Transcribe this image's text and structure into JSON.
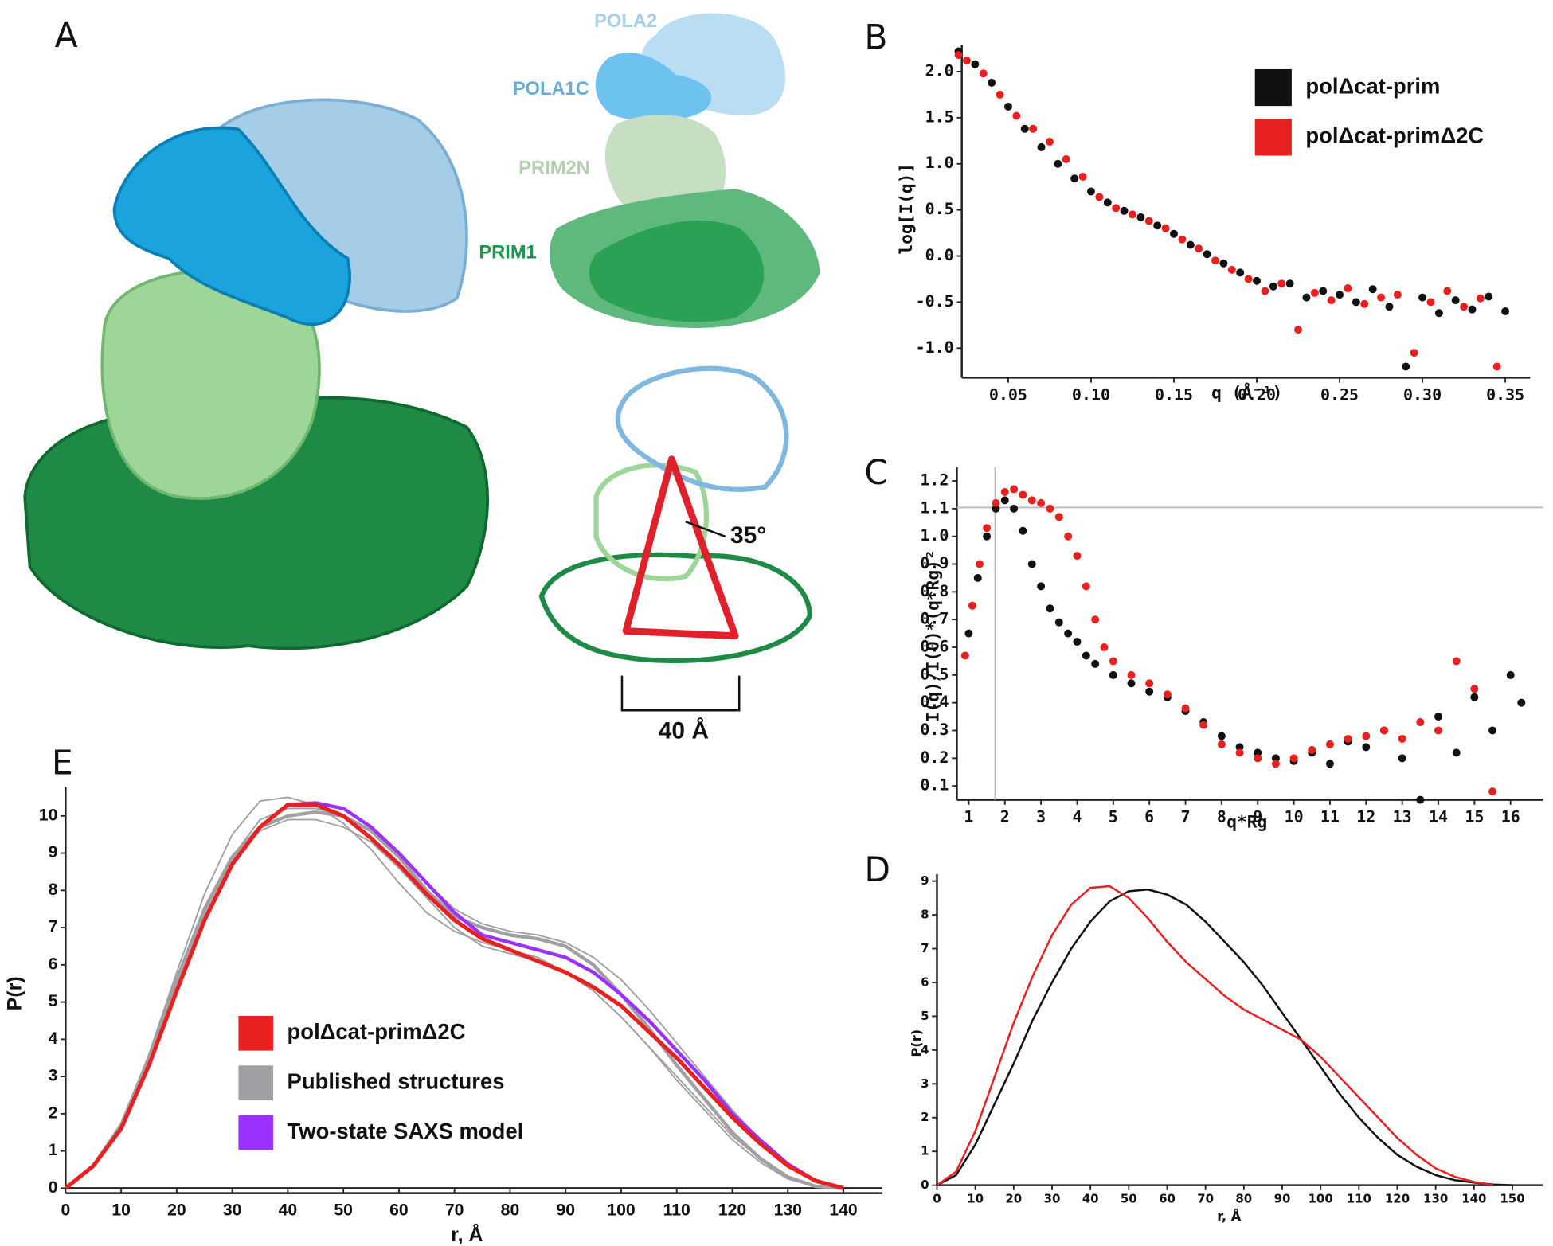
{
  "panel_a": {
    "label": "A",
    "subunits": [
      "POLA2",
      "POLA1C",
      "PRIM2N",
      "PRIM1"
    ],
    "angle": "35°",
    "distance": "40 Å"
  },
  "chart_data": [
    {
      "type": "scatter",
      "panel_label": "B",
      "x_label": "q (Å⁻¹)",
      "y_label": "log[I(q)]",
      "xlim": [
        0.022,
        0.365
      ],
      "ylim": [
        -1.32,
        2.29
      ],
      "xticks": [
        0.05,
        {
          "value": 0.1,
          "label": "0.10"
        },
        0.15,
        {
          "value": 0.2,
          "label": "0.20"
        },
        0.25,
        {
          "value": 0.3,
          "label": "0.30"
        },
        0.35
      ],
      "yticks": [
        {
          "value": 2,
          "label": "2.0"
        },
        1.5,
        {
          "value": 1,
          "label": "1.0"
        },
        0.5,
        {
          "value": 0,
          "label": "0.0"
        },
        -0.5,
        {
          "value": -1,
          "label": "-1.0"
        }
      ],
      "series": [
        {
          "name": "polΔcat-prim",
          "color": "#111111",
          "x": [
            0.02,
            0.03,
            0.04,
            0.05,
            0.06,
            0.07,
            0.08,
            0.09,
            0.1,
            0.11,
            0.12,
            0.13,
            0.14,
            0.15,
            0.16,
            0.17,
            0.18,
            0.19,
            0.2,
            0.21,
            0.22,
            0.23,
            0.24,
            0.25,
            0.26,
            0.27,
            0.28,
            0.29,
            0.3,
            0.31,
            0.32,
            0.33,
            0.34,
            0.35
          ],
          "values": [
            2.22,
            2.08,
            1.88,
            1.62,
            1.38,
            1.18,
            1.0,
            0.84,
            0.7,
            0.58,
            0.49,
            0.42,
            0.33,
            0.24,
            0.12,
            0.02,
            -0.08,
            -0.18,
            -0.27,
            -0.33,
            -0.3,
            -0.45,
            -0.38,
            -0.42,
            -0.5,
            -0.36,
            -0.55,
            -1.2,
            -0.45,
            -0.62,
            -0.48,
            -0.58,
            -0.44,
            -0.6
          ]
        },
        {
          "name": "polΔcat-primΔ2C",
          "color": "#e8201f",
          "x": [
            0.02,
            0.025,
            0.035,
            0.045,
            0.055,
            0.065,
            0.075,
            0.085,
            0.095,
            0.105,
            0.115,
            0.125,
            0.135,
            0.145,
            0.155,
            0.165,
            0.175,
            0.185,
            0.195,
            0.205,
            0.215,
            0.225,
            0.235,
            0.245,
            0.255,
            0.265,
            0.275,
            0.285,
            0.295,
            0.305,
            0.315,
            0.325,
            0.335,
            0.345
          ],
          "values": [
            2.18,
            2.12,
            1.98,
            1.75,
            1.52,
            1.38,
            1.24,
            1.05,
            0.86,
            0.64,
            0.52,
            0.45,
            0.38,
            0.3,
            0.18,
            0.08,
            -0.05,
            -0.15,
            -0.25,
            -0.38,
            -0.3,
            -0.8,
            -0.4,
            -0.48,
            -0.35,
            -0.52,
            -0.45,
            -0.42,
            -1.05,
            -0.5,
            -0.38,
            -0.55,
            -0.46,
            -1.2
          ]
        }
      ]
    },
    {
      "type": "scatter",
      "panel_label": "C",
      "x_label": "q*Rg",
      "y_label": "I(q)/I(0)*(q*Rg)²",
      "xlim": [
        0.67,
        16.9
      ],
      "ylim": [
        0.05,
        1.25
      ],
      "xticks": [
        1,
        2,
        3,
        4,
        5,
        6,
        7,
        8,
        9,
        10,
        11,
        12,
        13,
        14,
        15,
        16
      ],
      "yticks": [
        0.1,
        0.2,
        0.3,
        0.4,
        0.5,
        0.6,
        0.7,
        0.8,
        0.9,
        {
          "value": 1,
          "label": "1.0"
        },
        1.1,
        1.2
      ],
      "reference_lines": [
        {
          "axis": "x",
          "value": 1.73
        },
        {
          "axis": "y",
          "value": 1.104
        }
      ],
      "series": [
        {
          "color": "#111111",
          "x": [
            1.0,
            1.25,
            1.5,
            1.75,
            2,
            2.25,
            2.5,
            2.75,
            3,
            3.25,
            3.5,
            3.75,
            4,
            4.25,
            4.5,
            5,
            5.5,
            6,
            6.5,
            7,
            7.5,
            8,
            8.5,
            9,
            9.5,
            10,
            10.5,
            11,
            11.5,
            12,
            12.5,
            13,
            13.5,
            14,
            14.5,
            15,
            15.5,
            16,
            16.3
          ],
          "values": [
            0.65,
            0.85,
            1.0,
            1.1,
            1.13,
            1.1,
            1.02,
            0.9,
            0.82,
            0.74,
            0.69,
            0.65,
            0.62,
            0.57,
            0.54,
            0.5,
            0.47,
            0.44,
            0.42,
            0.37,
            0.33,
            0.28,
            0.24,
            0.22,
            0.2,
            0.19,
            0.22,
            0.18,
            0.26,
            0.24,
            0.3,
            0.2,
            0.05,
            0.35,
            0.22,
            0.42,
            0.3,
            0.5,
            0.4
          ]
        },
        {
          "color": "#e8201f",
          "x": [
            0.9,
            1.1,
            1.3,
            1.5,
            1.75,
            2,
            2.25,
            2.5,
            2.75,
            3,
            3.25,
            3.5,
            3.75,
            4,
            4.25,
            4.5,
            4.75,
            5,
            5.5,
            6,
            6.5,
            7,
            7.5,
            8,
            8.5,
            9,
            9.5,
            10,
            10.5,
            11,
            11.5,
            12,
            12.5,
            13,
            13.5,
            14,
            14.5,
            15,
            15.5
          ],
          "values": [
            0.57,
            0.75,
            0.9,
            1.03,
            1.12,
            1.16,
            1.17,
            1.15,
            1.13,
            1.12,
            1.1,
            1.07,
            1.0,
            0.93,
            0.82,
            0.7,
            0.6,
            0.55,
            0.5,
            0.47,
            0.43,
            0.38,
            0.32,
            0.25,
            0.22,
            0.2,
            0.18,
            0.2,
            0.23,
            0.25,
            0.27,
            0.28,
            0.3,
            0.27,
            0.33,
            0.3,
            0.55,
            0.45,
            0.08
          ]
        }
      ]
    },
    {
      "type": "line",
      "panel_label": "D",
      "x_label": "r, Å",
      "y_label": "P(r)",
      "xlim": [
        0,
        158
      ],
      "ylim": [
        0,
        9.2
      ],
      "xticks": [
        0,
        10,
        20,
        30,
        40,
        50,
        60,
        70,
        80,
        90,
        100,
        110,
        120,
        130,
        140,
        150
      ],
      "yticks": [
        0,
        1,
        2,
        3,
        4,
        5,
        6,
        7,
        8,
        9
      ],
      "x": [
        0,
        5,
        10,
        15,
        20,
        25,
        30,
        35,
        40,
        45,
        50,
        55,
        60,
        65,
        70,
        75,
        80,
        85,
        90,
        95,
        100,
        105,
        110,
        115,
        120,
        125,
        130,
        135,
        140,
        145,
        150
      ],
      "series": [
        {
          "color": "#111111",
          "values": [
            0,
            0.3,
            1.2,
            2.4,
            3.6,
            4.9,
            6.0,
            7.0,
            7.8,
            8.4,
            8.7,
            8.75,
            8.6,
            8.3,
            7.8,
            7.2,
            6.6,
            5.9,
            5.1,
            4.3,
            3.5,
            2.7,
            2.0,
            1.4,
            0.9,
            0.55,
            0.3,
            0.15,
            0.08,
            0.02,
            0
          ]
        },
        {
          "color": "#e8201f",
          "values": [
            0,
            0.4,
            1.6,
            3.2,
            4.8,
            6.2,
            7.4,
            8.3,
            8.8,
            8.85,
            8.5,
            7.9,
            7.2,
            6.6,
            6.1,
            5.6,
            5.2,
            4.9,
            4.6,
            4.3,
            3.8,
            3.2,
            2.6,
            2.0,
            1.4,
            0.9,
            0.5,
            0.25,
            0.1,
            0,
            null
          ]
        }
      ]
    },
    {
      "type": "line",
      "panel_label": "E",
      "x_label": "r, Å",
      "y_label": "P(r)",
      "xlim": [
        0,
        147
      ],
      "ylim": [
        0,
        10.78
      ],
      "xticks": [
        0,
        10,
        20,
        30,
        40,
        50,
        60,
        70,
        80,
        90,
        100,
        110,
        120,
        130,
        140
      ],
      "yticks": [
        0,
        1,
        2,
        3,
        4,
        5,
        6,
        7,
        8,
        9,
        10
      ],
      "x": [
        0,
        5,
        10,
        15,
        20,
        25,
        30,
        35,
        40,
        45,
        50,
        55,
        60,
        65,
        70,
        75,
        80,
        85,
        90,
        95,
        100,
        105,
        110,
        115,
        120,
        125,
        130,
        135,
        140
      ],
      "series": [
        {
          "name": "Published structures",
          "color": "#a0a0a4",
          "values": [
            0,
            0.6,
            1.7,
            3.5,
            5.6,
            7.5,
            8.9,
            9.7,
            10.0,
            10.1,
            10.0,
            9.6,
            8.9,
            8.0,
            7.3,
            7.0,
            6.8,
            6.7,
            6.5,
            6.0,
            5.2,
            4.3,
            3.3,
            2.4,
            1.5,
            0.8,
            0.3,
            0.05,
            0
          ]
        },
        {
          "color": "#a0a0a4",
          "values": [
            0,
            0.6,
            1.7,
            3.6,
            5.8,
            7.9,
            9.5,
            10.4,
            10.5,
            10.3,
            9.8,
            9.1,
            8.2,
            7.4,
            6.9,
            6.6,
            6.4,
            6.2,
            5.8,
            5.3,
            4.6,
            3.8,
            3.0,
            2.2,
            1.4,
            0.8,
            0.3,
            0.05,
            0
          ]
        },
        {
          "color": "#a0a0a4",
          "values": [
            0,
            0.6,
            1.6,
            3.4,
            5.5,
            7.4,
            8.9,
            9.9,
            10.2,
            10.2,
            10.0,
            9.6,
            9.0,
            8.2,
            7.5,
            7.1,
            6.9,
            6.8,
            6.6,
            6.2,
            5.6,
            4.8,
            3.9,
            3.0,
            2.1,
            1.3,
            0.6,
            0.15,
            0
          ]
        },
        {
          "color": "#a0a0a4",
          "values": [
            0,
            0.6,
            1.6,
            3.3,
            5.4,
            7.3,
            8.8,
            9.6,
            9.9,
            9.9,
            9.7,
            9.3,
            8.6,
            7.8,
            7.0,
            6.5,
            6.3,
            6.1,
            5.8,
            5.3,
            4.6,
            3.8,
            2.9,
            2.1,
            1.3,
            0.7,
            0.25,
            0.05,
            0
          ]
        },
        {
          "name": "Two-state SAXS model",
          "color": "#9b30ff",
          "values": [
            0,
            0.6,
            1.6,
            3.3,
            5.3,
            7.2,
            8.7,
            9.7,
            10.3,
            10.35,
            10.2,
            9.7,
            9.0,
            8.2,
            7.4,
            6.8,
            6.6,
            6.4,
            6.2,
            5.8,
            5.2,
            4.5,
            3.7,
            2.9,
            2.0,
            1.3,
            0.65,
            0.2,
            0
          ]
        },
        {
          "name": "polΔcat-primΔ2C",
          "color": "#e8201f",
          "values": [
            0,
            0.6,
            1.6,
            3.3,
            5.3,
            7.2,
            8.7,
            9.7,
            10.3,
            10.3,
            10.0,
            9.4,
            8.7,
            7.9,
            7.2,
            6.7,
            6.4,
            6.1,
            5.8,
            5.4,
            4.9,
            4.2,
            3.5,
            2.7,
            1.9,
            1.2,
            0.6,
            0.2,
            0
          ]
        }
      ],
      "legend_order": [
        5,
        0,
        4
      ]
    }
  ]
}
